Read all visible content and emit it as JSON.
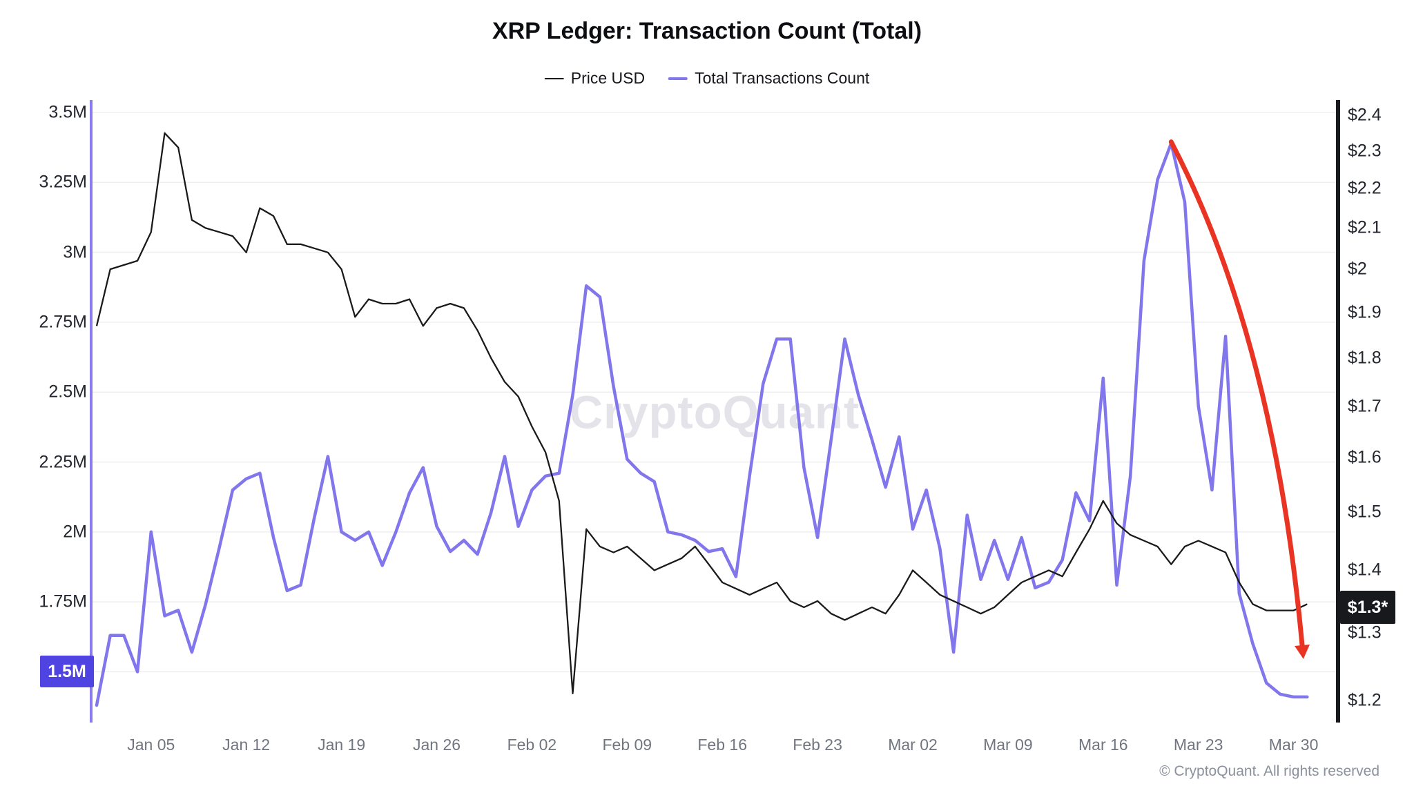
{
  "header": {
    "title": "XRP Ledger: Transaction Count (Total)"
  },
  "legend": [
    {
      "label": "Price USD",
      "color": "#1a1a1a",
      "thickness": 2
    },
    {
      "label": "Total Transactions Count",
      "color": "#8276ed",
      "thickness": 4
    }
  ],
  "watermark": {
    "text": "CryptoQuant"
  },
  "footer": {
    "text": "© CryptoQuant. All rights reserved"
  },
  "axes": {
    "left": {
      "labels": [
        "3.5M",
        "3.25M",
        "3M",
        "2.75M",
        "2.5M",
        "2.25M",
        "2M",
        "1.75M"
      ],
      "values": [
        3.5,
        3.25,
        3.0,
        2.75,
        2.5,
        2.25,
        2.0,
        1.75
      ],
      "badge": "1.5M",
      "badge_value": 1.5,
      "badge_color": "#4f43e2",
      "axis_line_color": "#897cef"
    },
    "right": {
      "labels": [
        "$2.4",
        "$2.3",
        "$2.2",
        "$2.1",
        "$2",
        "$1.9",
        "$1.8",
        "$1.7",
        "$1.6",
        "$1.5",
        "$1.4",
        "$1.3",
        "$1.2"
      ],
      "values": [
        2.4,
        2.3,
        2.2,
        2.1,
        2.0,
        1.9,
        1.8,
        1.7,
        1.6,
        1.5,
        1.4,
        1.3,
        1.2
      ],
      "badge": "$1.3*",
      "badge_value": 1.34,
      "badge_color": "#17191d",
      "axis_line_color": "#17191d",
      "scale": "log"
    },
    "x": {
      "labels": [
        "Jan 05",
        "Jan 12",
        "Jan 19",
        "Jan 26",
        "Feb 02",
        "Feb 09",
        "Feb 16",
        "Feb 23",
        "Mar 02",
        "Mar 09",
        "Mar 16",
        "Mar 23",
        "Mar 30"
      ],
      "day_index": [
        4,
        11,
        18,
        25,
        32,
        39,
        46,
        53,
        60,
        67,
        74,
        81,
        88
      ]
    }
  },
  "chart_data": {
    "type": "line",
    "title": "XRP Ledger: Transaction Count (Total)",
    "x_start": "Jan 01",
    "x_end": "Mar 31",
    "x_unit": "day",
    "left_axis_label": "Total Transactions Count (millions)",
    "left_axis_range_m": [
      1.3,
      3.5
    ],
    "right_axis_label": "Price USD",
    "right_axis_range_usd": [
      1.2,
      2.4
    ],
    "right_axis_scale": "log",
    "grid": "horizontal",
    "legend_position": "top-center",
    "series": [
      {
        "name": "Price USD",
        "axis": "right",
        "unit": "USD",
        "color": "#1a1a1a",
        "stroke_width": 2.3,
        "values": [
          1.87,
          2.0,
          2.01,
          2.02,
          2.09,
          2.35,
          2.31,
          2.12,
          2.1,
          2.09,
          2.08,
          2.04,
          2.15,
          2.13,
          2.06,
          2.06,
          2.05,
          2.04,
          2.0,
          1.89,
          1.93,
          1.92,
          1.92,
          1.93,
          1.87,
          1.91,
          1.92,
          1.91,
          1.86,
          1.8,
          1.75,
          1.72,
          1.66,
          1.61,
          1.52,
          1.21,
          1.47,
          1.44,
          1.43,
          1.44,
          1.42,
          1.4,
          1.41,
          1.42,
          1.44,
          1.41,
          1.38,
          1.37,
          1.36,
          1.37,
          1.38,
          1.35,
          1.34,
          1.35,
          1.33,
          1.32,
          1.33,
          1.34,
          1.33,
          1.36,
          1.4,
          1.38,
          1.36,
          1.35,
          1.34,
          1.33,
          1.34,
          1.36,
          1.38,
          1.39,
          1.4,
          1.39,
          1.43,
          1.47,
          1.52,
          1.48,
          1.46,
          1.45,
          1.44,
          1.41,
          1.44,
          1.45,
          1.44,
          1.43,
          1.38,
          1.345,
          1.335,
          1.335,
          1.335,
          1.345
        ]
      },
      {
        "name": "Total Transactions Count",
        "axis": "left",
        "unit": "millions",
        "color": "#8276ed",
        "stroke_width": 4.5,
        "values": [
          1.38,
          1.63,
          1.63,
          1.5,
          2.0,
          1.7,
          1.72,
          1.57,
          1.74,
          1.94,
          2.15,
          2.19,
          2.21,
          1.98,
          1.79,
          1.81,
          2.05,
          2.27,
          2.0,
          1.97,
          2.0,
          1.88,
          2.0,
          2.14,
          2.23,
          2.02,
          1.93,
          1.97,
          1.92,
          2.07,
          2.27,
          2.02,
          2.15,
          2.2,
          2.21,
          2.49,
          2.88,
          2.84,
          2.52,
          2.26,
          2.21,
          2.18,
          2.0,
          1.99,
          1.97,
          1.93,
          1.94,
          1.84,
          2.2,
          2.53,
          2.69,
          2.69,
          2.23,
          1.98,
          2.33,
          2.69,
          2.49,
          2.33,
          2.16,
          2.34,
          2.01,
          2.15,
          1.94,
          1.57,
          2.06,
          1.83,
          1.97,
          1.83,
          1.98,
          1.8,
          1.82,
          1.9,
          2.14,
          2.04,
          2.55,
          1.81,
          2.2,
          2.97,
          3.26,
          3.39,
          3.18,
          2.45,
          2.15,
          2.7,
          1.78,
          1.6,
          1.46,
          1.42,
          1.41,
          1.41
        ]
      }
    ],
    "annotation": {
      "type": "curved-arrow",
      "color": "#ea3423",
      "stroke_width": 7,
      "from_day": 79,
      "from_value_m": 3.39,
      "to_day": 88,
      "to_value_m": 1.55,
      "meaning": "sharp drop of transaction count from Mar 21 peak into end of March"
    },
    "grid_color": "#efeff2"
  }
}
